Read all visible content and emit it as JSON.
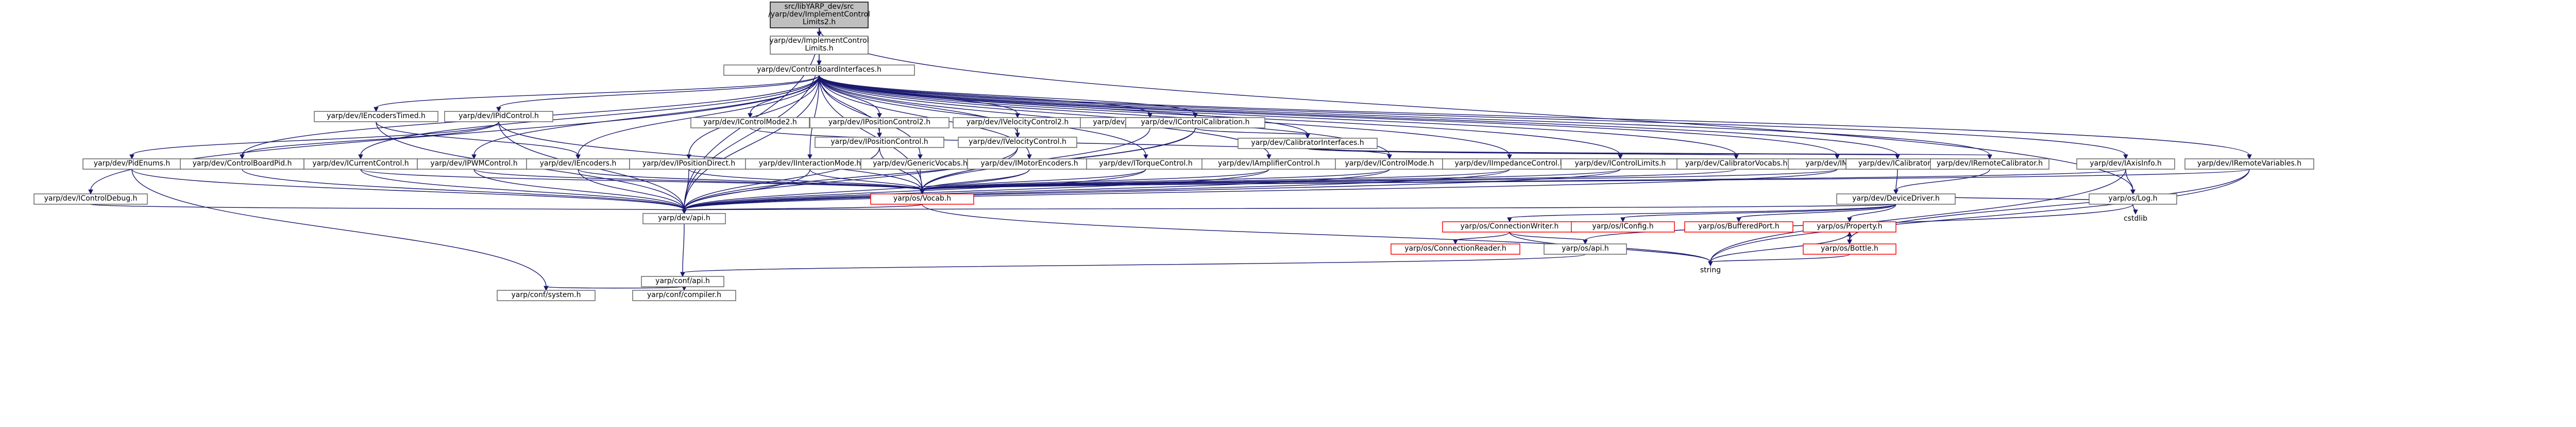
{
  "nodes": [
    {
      "id": "root",
      "lines": [
        "src/libYARP_dev/src",
        "/yarp/dev/ImplementControl",
        "Limits2.h"
      ],
      "style": "root"
    },
    {
      "id": "implCL",
      "lines": [
        "yarp/dev/ImplementControl",
        "Limits.h"
      ],
      "style": "normal"
    },
    {
      "id": "cbi",
      "lines": [
        "yarp/dev/ControlBoardInterfaces.h"
      ],
      "style": "normal"
    },
    {
      "id": "encTimed",
      "lines": [
        "yarp/dev/IEncodersTimed.h"
      ],
      "style": "normal"
    },
    {
      "id": "pidCtrl",
      "lines": [
        "yarp/dev/IPidControl.h"
      ],
      "style": "normal"
    },
    {
      "id": "icm2",
      "lines": [
        "yarp/dev/IControlMode2.h"
      ],
      "style": "normal"
    },
    {
      "id": "ipc2",
      "lines": [
        "yarp/dev/IPositionControl2.h"
      ],
      "style": "normal"
    },
    {
      "id": "ipc",
      "lines": [
        "yarp/dev/IPositionControl.h"
      ],
      "style": "normal"
    },
    {
      "id": "ivc2",
      "lines": [
        "yarp/dev/IVelocityControl2.h"
      ],
      "style": "normal"
    },
    {
      "id": "ivc",
      "lines": [
        "yarp/dev/IVelocityControl.h"
      ],
      "style": "normal"
    },
    {
      "id": "cbvocabs",
      "lines": [
        "yarp/dev/ControlBoardVocabs.h"
      ],
      "style": "normal"
    },
    {
      "id": "icalib",
      "lines": [
        "yarp/dev/IControlCalibration.h"
      ],
      "style": "normal"
    },
    {
      "id": "calibIf",
      "lines": [
        "yarp/dev/CalibratorInterfaces.h"
      ],
      "style": "normal"
    },
    {
      "id": "pidEnums",
      "lines": [
        "yarp/dev/PidEnums.h"
      ],
      "style": "normal"
    },
    {
      "id": "cbpid",
      "lines": [
        "yarp/dev/ControlBoardPid.h"
      ],
      "style": "normal"
    },
    {
      "id": "icur",
      "lines": [
        "yarp/dev/ICurrentControl.h"
      ],
      "style": "normal"
    },
    {
      "id": "ipwm",
      "lines": [
        "yarp/dev/IPWMControl.h"
      ],
      "style": "normal"
    },
    {
      "id": "ienc",
      "lines": [
        "yarp/dev/IEncoders.h"
      ],
      "style": "normal"
    },
    {
      "id": "iposd",
      "lines": [
        "yarp/dev/IPositionDirect.h"
      ],
      "style": "normal"
    },
    {
      "id": "iint",
      "lines": [
        "yarp/dev/IInteractionMode.h"
      ],
      "style": "normal"
    },
    {
      "id": "genvoc",
      "lines": [
        "yarp/dev/GenericVocabs.h"
      ],
      "style": "normal"
    },
    {
      "id": "imenc",
      "lines": [
        "yarp/dev/IMotorEncoders.h"
      ],
      "style": "normal"
    },
    {
      "id": "itorq",
      "lines": [
        "yarp/dev/ITorqueControl.h"
      ],
      "style": "normal"
    },
    {
      "id": "iamp",
      "lines": [
        "yarp/dev/IAmplifierControl.h"
      ],
      "style": "normal"
    },
    {
      "id": "icm",
      "lines": [
        "yarp/dev/IControlMode.h"
      ],
      "style": "normal"
    },
    {
      "id": "iimp",
      "lines": [
        "yarp/dev/IImpedanceControl.h"
      ],
      "style": "normal"
    },
    {
      "id": "icl",
      "lines": [
        "yarp/dev/IControlLimits.h"
      ],
      "style": "normal"
    },
    {
      "id": "calvoc",
      "lines": [
        "yarp/dev/CalibratorVocabs.h"
      ],
      "style": "normal"
    },
    {
      "id": "imotor",
      "lines": [
        "yarp/dev/IMotor.h"
      ],
      "style": "normal"
    },
    {
      "id": "calib",
      "lines": [
        "yarp/dev/ICalibrator.h"
      ],
      "style": "normal"
    },
    {
      "id": "remcal",
      "lines": [
        "yarp/dev/IRemoteCalibrator.h"
      ],
      "style": "normal"
    },
    {
      "id": "iaxis",
      "lines": [
        "yarp/dev/IAxisInfo.h"
      ],
      "style": "normal"
    },
    {
      "id": "iremvar",
      "lines": [
        "yarp/dev/IRemoteVariables.h"
      ],
      "style": "normal"
    },
    {
      "id": "icdbg",
      "lines": [
        "yarp/dev/IControlDebug.h"
      ],
      "style": "normal"
    },
    {
      "id": "vocab",
      "lines": [
        "yarp/os/Vocab.h"
      ],
      "style": "red"
    },
    {
      "id": "devdrv",
      "lines": [
        "yarp/dev/DeviceDriver.h"
      ],
      "style": "normal"
    },
    {
      "id": "log",
      "lines": [
        "yarp/os/Log.h"
      ],
      "style": "normal"
    },
    {
      "id": "cstdlib",
      "lines": [
        "cstdlib"
      ],
      "style": "plain"
    },
    {
      "id": "api",
      "lines": [
        "yarp/dev/api.h"
      ],
      "style": "normal"
    },
    {
      "id": "connw",
      "lines": [
        "yarp/os/ConnectionWriter.h"
      ],
      "style": "red"
    },
    {
      "id": "iconfig",
      "lines": [
        "yarp/os/IConfig.h"
      ],
      "style": "red"
    },
    {
      "id": "bufport",
      "lines": [
        "yarp/os/BufferedPort.h"
      ],
      "style": "red"
    },
    {
      "id": "prop",
      "lines": [
        "yarp/os/Property.h"
      ],
      "style": "red"
    },
    {
      "id": "connr",
      "lines": [
        "yarp/os/ConnectionReader.h"
      ],
      "style": "red"
    },
    {
      "id": "osapi",
      "lines": [
        "yarp/os/api.h"
      ],
      "style": "normal"
    },
    {
      "id": "bottle",
      "lines": [
        "yarp/os/Bottle.h"
      ],
      "style": "red"
    },
    {
      "id": "string",
      "lines": [
        "string"
      ],
      "style": "plain"
    },
    {
      "id": "confapi",
      "lines": [
        "yarp/conf/api.h"
      ],
      "style": "normal"
    },
    {
      "id": "confsys",
      "lines": [
        "yarp/conf/system.h"
      ],
      "style": "normal"
    },
    {
      "id": "confcomp",
      "lines": [
        "yarp/conf/compiler.h"
      ],
      "style": "normal"
    }
  ]
}
